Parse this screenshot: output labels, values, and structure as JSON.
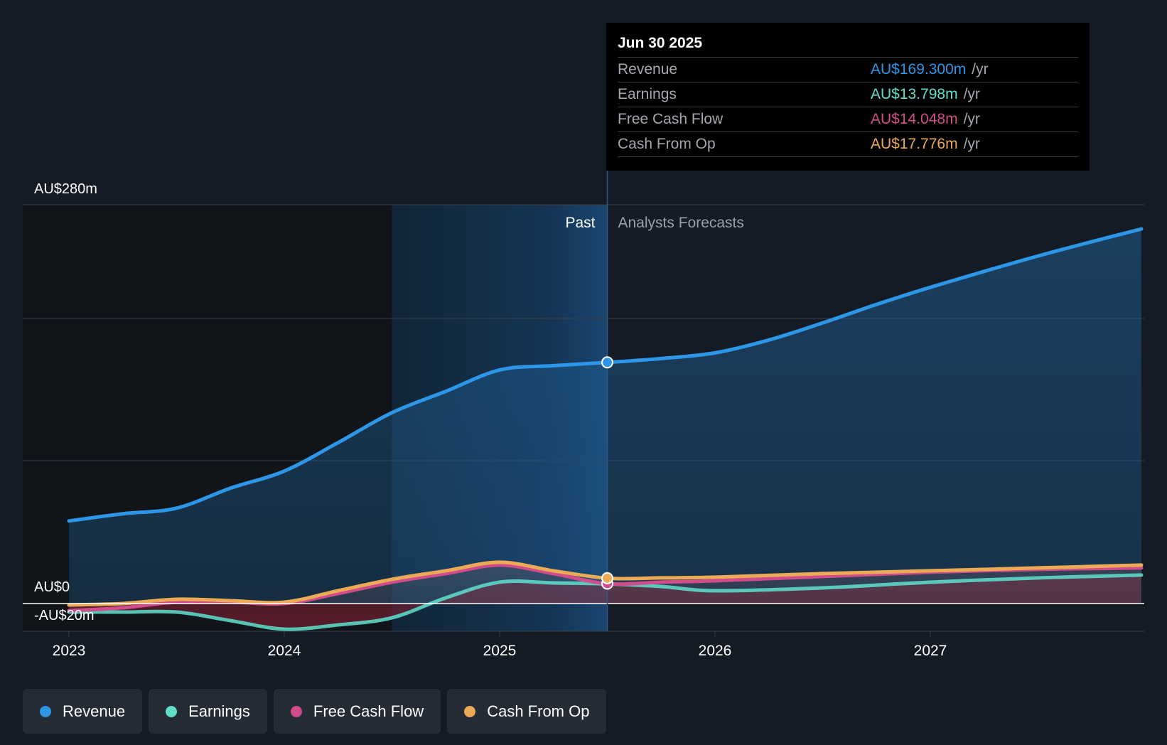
{
  "chart_data": {
    "type": "area",
    "y_axis_labels": {
      "top": "AU$280m",
      "zero": "AU$0",
      "bottom": "-AU$20m"
    },
    "ylim": [
      -20,
      280
    ],
    "x_ticks": [
      {
        "label": "2023",
        "value": 2023.0
      },
      {
        "label": "2024",
        "value": 2024.0
      },
      {
        "label": "2025",
        "value": 2025.0
      },
      {
        "label": "2026",
        "value": 2026.0
      },
      {
        "label": "2027",
        "value": 2027.0
      }
    ],
    "xlim": [
      2022.79,
      2027.98
    ],
    "past_label": "Past",
    "forecast_label": "Analysts Forecasts",
    "past_band_start": 2024.5,
    "divider_x": 2025.5,
    "series": [
      {
        "name": "Revenue",
        "color": "#2d96e6",
        "points": [
          [
            2023.0,
            58
          ],
          [
            2023.25,
            63
          ],
          [
            2023.5,
            67
          ],
          [
            2023.75,
            81
          ],
          [
            2024.0,
            93
          ],
          [
            2024.25,
            113
          ],
          [
            2024.5,
            134
          ],
          [
            2024.75,
            149
          ],
          [
            2025.0,
            164
          ],
          [
            2025.25,
            167
          ],
          [
            2025.5,
            169.3
          ],
          [
            2025.75,
            172
          ],
          [
            2026.0,
            176
          ],
          [
            2026.25,
            185
          ],
          [
            2026.5,
            197
          ],
          [
            2026.75,
            210
          ],
          [
            2027.0,
            222
          ],
          [
            2027.5,
            244
          ],
          [
            2027.98,
            263
          ]
        ]
      },
      {
        "name": "Earnings",
        "color": "#5fe0cc",
        "points": [
          [
            2023.0,
            -6
          ],
          [
            2023.25,
            -6
          ],
          [
            2023.5,
            -6
          ],
          [
            2023.75,
            -12
          ],
          [
            2024.0,
            -18
          ],
          [
            2024.25,
            -15
          ],
          [
            2024.5,
            -10
          ],
          [
            2024.75,
            4
          ],
          [
            2025.0,
            15
          ],
          [
            2025.25,
            14.5
          ],
          [
            2025.5,
            13.8
          ],
          [
            2025.75,
            12
          ],
          [
            2026.0,
            9
          ],
          [
            2026.5,
            11
          ],
          [
            2027.0,
            15
          ],
          [
            2027.5,
            18
          ],
          [
            2027.98,
            20
          ]
        ]
      },
      {
        "name": "Free Cash Flow",
        "color": "#d14c8a",
        "points": [
          [
            2023.0,
            -5
          ],
          [
            2023.25,
            -3
          ],
          [
            2023.5,
            1
          ],
          [
            2023.75,
            1
          ],
          [
            2024.0,
            0
          ],
          [
            2024.25,
            7
          ],
          [
            2024.5,
            15
          ],
          [
            2024.75,
            21
          ],
          [
            2025.0,
            27
          ],
          [
            2025.25,
            21
          ],
          [
            2025.5,
            14
          ],
          [
            2025.75,
            15
          ],
          [
            2026.0,
            16
          ],
          [
            2026.5,
            19
          ],
          [
            2027.0,
            22
          ],
          [
            2027.5,
            24
          ],
          [
            2027.98,
            25
          ]
        ]
      },
      {
        "name": "Cash From Op",
        "color": "#eaaa56",
        "points": [
          [
            2023.0,
            -1
          ],
          [
            2023.25,
            0
          ],
          [
            2023.5,
            3
          ],
          [
            2023.75,
            2
          ],
          [
            2024.0,
            1
          ],
          [
            2024.25,
            9
          ],
          [
            2024.5,
            17
          ],
          [
            2024.75,
            23
          ],
          [
            2025.0,
            29
          ],
          [
            2025.25,
            23
          ],
          [
            2025.5,
            17.8
          ],
          [
            2025.75,
            18
          ],
          [
            2026.0,
            18.5
          ],
          [
            2026.5,
            21
          ],
          [
            2027.0,
            23
          ],
          [
            2027.5,
            25
          ],
          [
            2027.98,
            27
          ]
        ]
      }
    ]
  },
  "tooltip": {
    "date": "Jun 30 2025",
    "unit": "/yr",
    "rows": [
      {
        "label": "Revenue",
        "value": "AU$169.300m",
        "color": "#2d96e6"
      },
      {
        "label": "Earnings",
        "value": "AU$13.798m",
        "color": "#5fe0cc"
      },
      {
        "label": "Free Cash Flow",
        "value": "AU$14.048m",
        "color": "#d14c8a"
      },
      {
        "label": "Cash From Op",
        "value": "AU$17.776m",
        "color": "#eaaa56"
      }
    ]
  },
  "legend": [
    {
      "label": "Revenue",
      "color": "#2d96e6"
    },
    {
      "label": "Earnings",
      "color": "#5fe0cc"
    },
    {
      "label": "Free Cash Flow",
      "color": "#d14c8a"
    },
    {
      "label": "Cash From Op",
      "color": "#eaaa56"
    }
  ]
}
